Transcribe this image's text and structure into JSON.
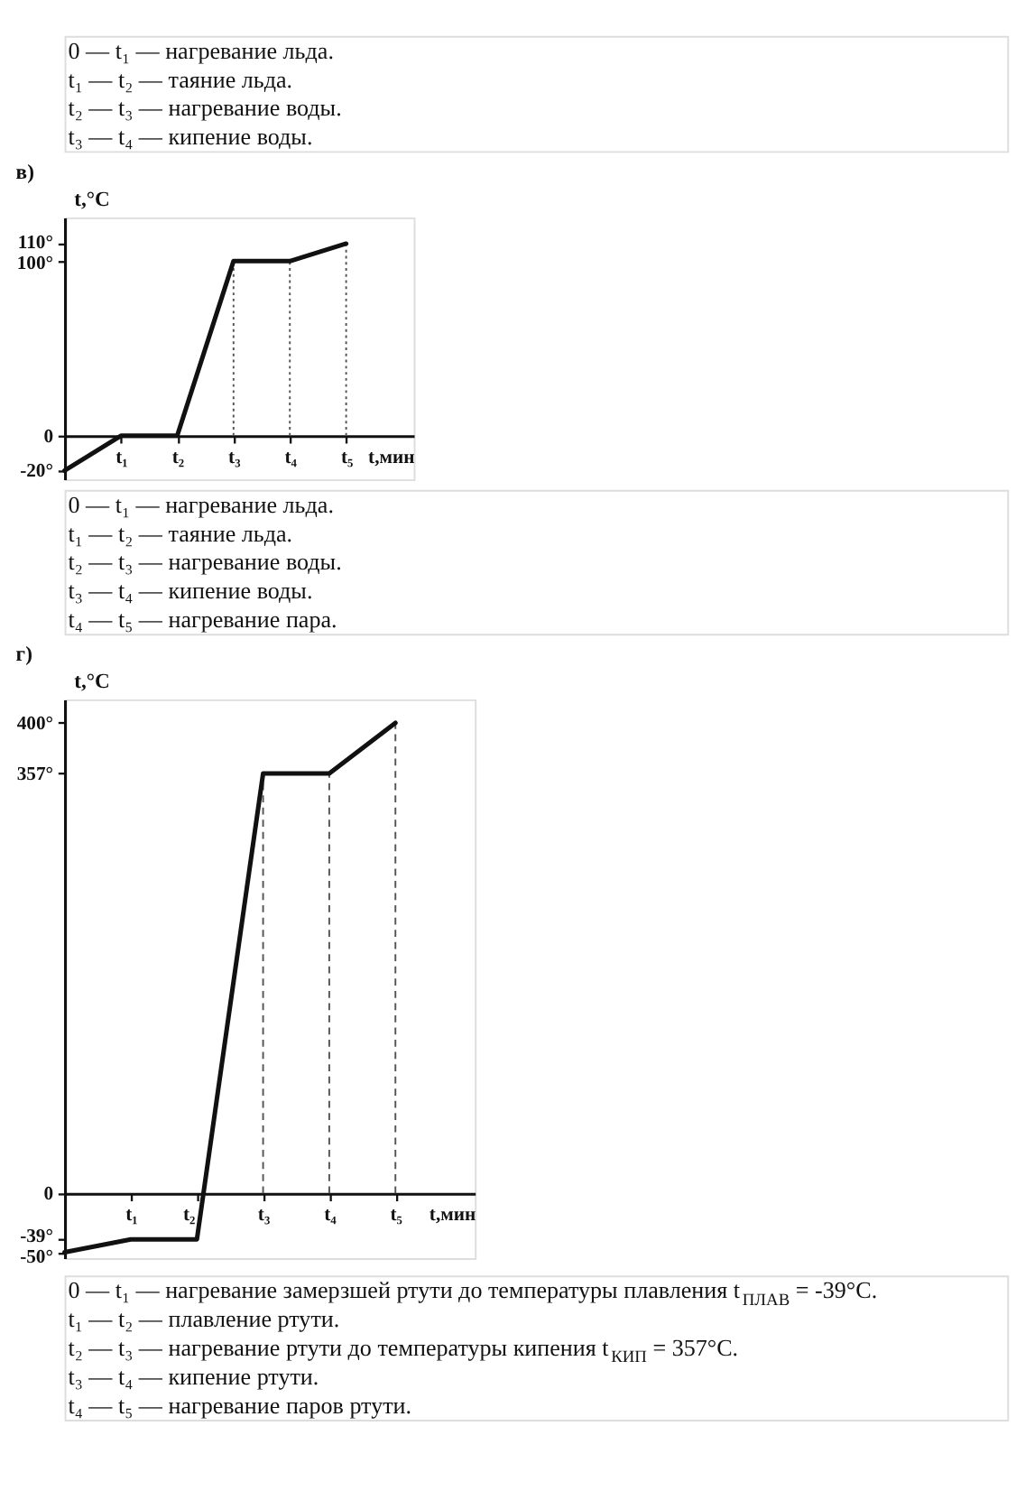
{
  "chart_data": [
    {
      "type": "other",
      "annotations": [
        "0 — t₁ — нагревание льда.",
        "t₁ — t₂ — таяние льда.",
        "t₂ — t₃ — нагревание воды.",
        "t₃ — t₄ — кипение воды."
      ]
    },
    {
      "type": "line",
      "title": "в)",
      "xlabel": "t,мин",
      "ylabel": "t,°C",
      "categories": [
        null,
        "t₁",
        "t₂",
        "t₃",
        "t₄",
        "t₅"
      ],
      "series": [
        {
          "color": "#111111",
          "values": [
            -20,
            0,
            0,
            100,
            100,
            110
          ]
        }
      ],
      "ylim": [
        -25,
        125
      ],
      "yticks": [
        {
          "value": -20,
          "label": "-20°"
        },
        0,
        {
          "value": 100,
          "label": "100°"
        },
        {
          "value": 110,
          "label": "110°"
        }
      ],
      "ref_lines": [
        {
          "axis": "x",
          "value": "t₃",
          "line_style": "dotted",
          "color": "#555555"
        },
        {
          "axis": "x",
          "value": "t₄",
          "line_style": "dotted",
          "color": "#555555"
        },
        {
          "axis": "x",
          "value": "t₅",
          "line_style": "dotted",
          "color": "#555555"
        }
      ],
      "annotations": [
        "0 — t₁ — нагревание льда.",
        "t₁ — t₂ — таяние льда.",
        "t₂ — t₃ — нагревание воды.",
        "t₃ — t₄ — кипение воды.",
        "t₄ — t₅ — нагревание пара."
      ]
    },
    {
      "type": "line",
      "title": "г)",
      "xlabel": "t,мин",
      "ylabel": "t,°C",
      "categories": [
        null,
        "t₁",
        "t₂",
        "t₃",
        "t₄",
        "t₅"
      ],
      "series": [
        {
          "color": "#111111",
          "values": [
            -50,
            -39,
            -39,
            357,
            357,
            400
          ]
        }
      ],
      "ylim": [
        -55,
        420
      ],
      "yticks": [
        {
          "value": -50,
          "label": "-50°"
        },
        {
          "value": -39,
          "label": "-39°"
        },
        0,
        {
          "value": 357,
          "label": "357°"
        },
        {
          "value": 400,
          "label": "400°"
        }
      ],
      "ref_lines": [
        {
          "axis": "x",
          "value": "t₃",
          "line_style": "dashed",
          "color": "#555555"
        },
        {
          "axis": "x",
          "value": "t₄",
          "line_style": "dashed",
          "color": "#555555"
        },
        {
          "axis": "x",
          "value": "t₅",
          "line_style": "dashed",
          "color": "#555555"
        }
      ],
      "annotations": [
        "0 — t₁ — нагревание замерзшей ртути до температуры плавления t$_{ПЛАВ}$ = -39°C.",
        "t₁ — t₂ — плавление ртути.",
        "t₂ — t₃ — нагревание ртути до температуры кипения t$_{КИП}$ = 357°C.",
        "t₃ — t₄ — кипение ртути.",
        "t₄ — t₅ — нагревание паров ртути."
      ]
    }
  ]
}
